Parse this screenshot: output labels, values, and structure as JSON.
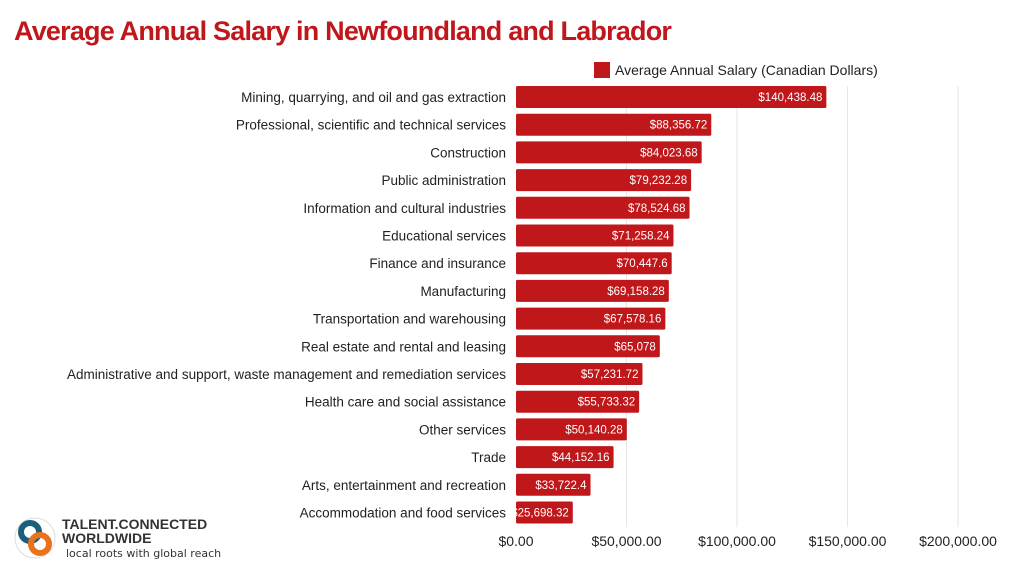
{
  "chart_data": {
    "type": "bar",
    "orientation": "horizontal",
    "title": "Average Annual Salary in Newfoundland and Labrador",
    "legend": {
      "position": "top-right",
      "entries": [
        "Average Annual Salary (Canadian Dollars)"
      ]
    },
    "categories": [
      "Mining, quarrying, and oil and gas extraction",
      "Professional, scientific and technical services",
      "Construction",
      "Public administration",
      "Information and cultural industries",
      "Educational services",
      "Finance and insurance",
      "Manufacturing",
      "Transportation and warehousing",
      "Real estate and rental and leasing",
      "Administrative and support, waste management and remediation services",
      "Health care and social assistance",
      "Other services",
      "Trade",
      "Arts, entertainment and recreation",
      "Accommodation and food services"
    ],
    "series": [
      {
        "name": "Average Annual Salary (Canadian Dollars)",
        "values": [
          140438.48,
          88356.72,
          84023.68,
          79232.28,
          78524.68,
          71258.24,
          70447.6,
          69158.28,
          67578.16,
          65078,
          57231.72,
          55733.32,
          50140.28,
          44152.16,
          33722.4,
          25698.32
        ],
        "labels": [
          "$140,438.48",
          "$88,356.72",
          "$84,023.68",
          "$79,232.28",
          "$78,524.68",
          "$71,258.24",
          "$70,447.6",
          "$69,158.28",
          "$67,578.16",
          "$65,078",
          "$57,231.72",
          "$55,733.32",
          "$50,140.28",
          "$44,152.16",
          "$33,722.4",
          "$25,698.32"
        ]
      }
    ],
    "xlim": [
      0,
      200000
    ],
    "xticks": [
      0,
      50000,
      100000,
      150000,
      200000
    ],
    "xtick_labels": [
      "$0.00",
      "$50,000.00",
      "$100,000.00",
      "$150,000.00",
      "$200,000.00"
    ],
    "grid": true,
    "colors": {
      "bar": "#c0171b",
      "title": "#c0171b",
      "grid": "#e6e6e6"
    }
  },
  "logo": {
    "line1": "TALENT.CONNECTED",
    "line2": "WORLDWIDE",
    "tagline": "local roots with global reach"
  }
}
